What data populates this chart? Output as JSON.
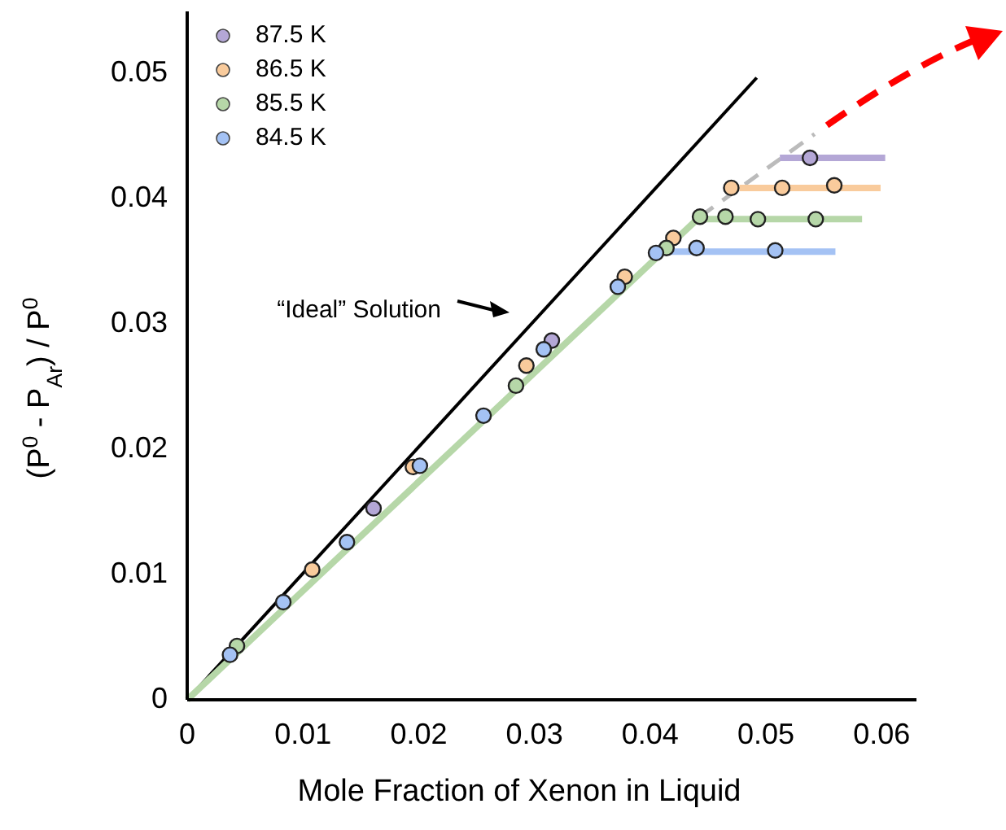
{
  "chart_data": {
    "type": "scatter",
    "xlabel": "Mole Fraction of Xenon in Liquid",
    "ylabel": "(P$^{0}$ - P$_{Ar}$) / P$^{0}$",
    "xlim": [
      0,
      0.063
    ],
    "ylim": [
      0,
      0.055
    ],
    "xticks": [
      0,
      0.01,
      0.02,
      0.03,
      0.04,
      0.05,
      0.06
    ],
    "yticks": [
      0,
      0.01,
      0.02,
      0.03,
      0.04,
      0.05
    ],
    "grid": false,
    "legend": "top left",
    "annotations": [
      "“Ideal” Solution"
    ],
    "series": [
      {
        "type": "line",
        "color": "#000000",
        "x": [
          0,
          0.0492
        ],
        "values": [
          0,
          0.0497
        ]
      },
      {
        "type": "line",
        "color": "#b6d7a8",
        "x": [
          0,
          0.0443
        ],
        "values": [
          0,
          0.0386
        ]
      },
      {
        "type": "line",
        "color": "#bbbbbb",
        "line_style": "dashed",
        "x": [
          0.0443,
          0.0542
        ],
        "values": [
          0.0386,
          0.0452
        ]
      },
      {
        "type": "line",
        "color": "#b4a7d6",
        "x": [
          0.0512,
          0.0603
        ],
        "values": [
          0.0433,
          0.0433
        ]
      },
      {
        "type": "line",
        "color": "#f9cb9c",
        "x": [
          0.0477,
          0.0599
        ],
        "values": [
          0.0409,
          0.0409
        ]
      },
      {
        "type": "line",
        "color": "#b6d7a8",
        "x": [
          0.0443,
          0.0583
        ],
        "values": [
          0.0384,
          0.0384
        ]
      },
      {
        "type": "line",
        "color": "#a4c2f4",
        "x": [
          0.0414,
          0.056
        ],
        "values": [
          0.0358,
          0.0358
        ]
      },
      {
        "name": "87.5 K",
        "color": "#b4a7d6",
        "marker": "circle",
        "x": [
          0.0161,
          0.0315,
          0.0538
        ],
        "values": [
          0.0153,
          0.0287,
          0.0433
        ]
      },
      {
        "name": "86.5 K",
        "color": "#f9cb9c",
        "marker": "circle",
        "x": [
          0.0108,
          0.0195,
          0.0293,
          0.0378,
          0.042,
          0.047,
          0.0514,
          0.0559
        ],
        "values": [
          0.0104,
          0.0186,
          0.0267,
          0.0338,
          0.0369,
          0.0409,
          0.0409,
          0.0411
        ]
      },
      {
        "name": "85.5 K",
        "color": "#b6d7a8",
        "marker": "circle",
        "x": [
          0.0043,
          0.0284,
          0.0414,
          0.0443,
          0.0465,
          0.0493,
          0.0543
        ],
        "values": [
          0.0043,
          0.0251,
          0.0361,
          0.0386,
          0.0386,
          0.0384,
          0.0384
        ]
      },
      {
        "name": "84.5 K",
        "color": "#a4c2f4",
        "marker": "circle",
        "x": [
          0.0037,
          0.0083,
          0.0138,
          0.0201,
          0.0256,
          0.0308,
          0.0372,
          0.0405,
          0.044,
          0.0508
        ],
        "values": [
          0.0036,
          0.0078,
          0.0126,
          0.0187,
          0.0227,
          0.028,
          0.033,
          0.0357,
          0.0361,
          0.0359
        ]
      }
    ]
  }
}
